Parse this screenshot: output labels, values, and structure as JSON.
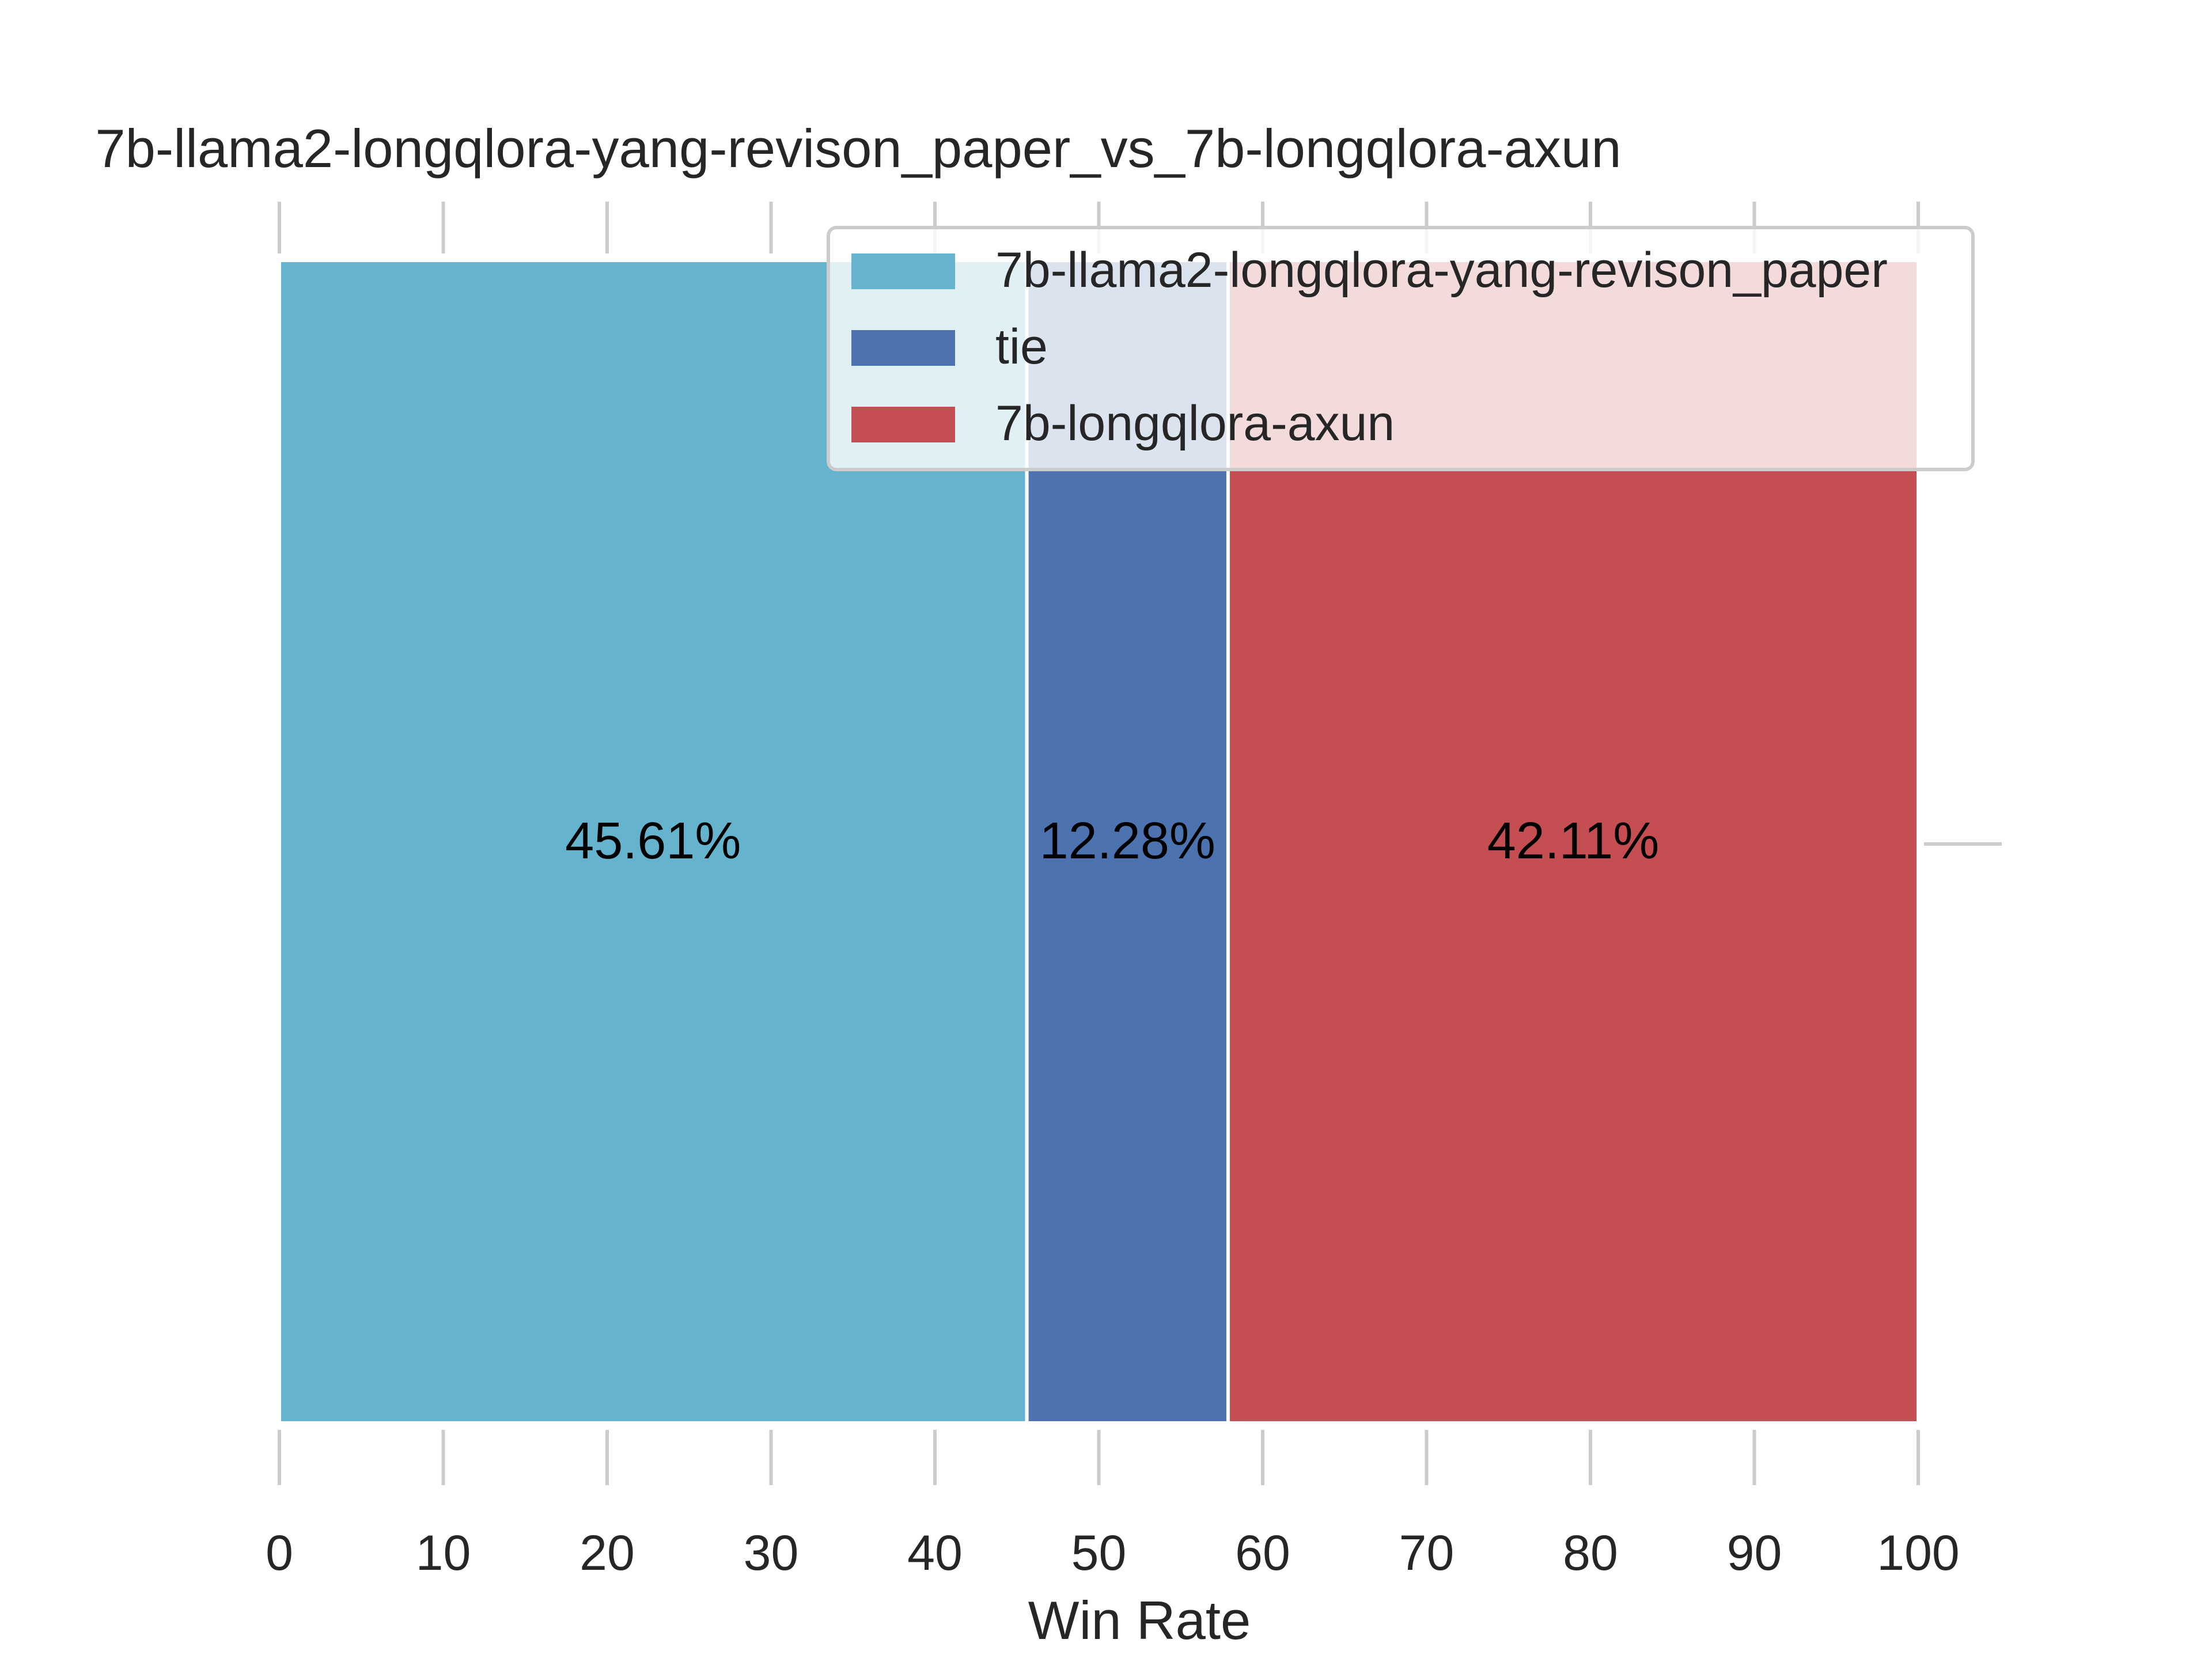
{
  "chart_data": {
    "type": "bar",
    "orientation": "horizontal-stacked",
    "title": "7b-llama2-longqlora-yang-revison_paper_vs_7b-longqlora-axun",
    "xlabel": "Win Rate",
    "ylabel": "",
    "xlim": [
      0,
      100
    ],
    "xticks": [
      "0",
      "10",
      "20",
      "30",
      "40",
      "50",
      "60",
      "70",
      "80",
      "90",
      "100"
    ],
    "grid": false,
    "legend_position": "top-right",
    "series": [
      {
        "name": "7b-llama2-longqlora-yang-revison_paper",
        "value": 45.61,
        "label": "45.61%",
        "color": "#66b3cd"
      },
      {
        "name": "tie",
        "value": 12.28,
        "label": "12.28%",
        "color": "#4c72b0"
      },
      {
        "name": "7b-longqlora-axun",
        "value": 42.11,
        "label": "42.11%",
        "color": "#c44e52"
      }
    ]
  }
}
